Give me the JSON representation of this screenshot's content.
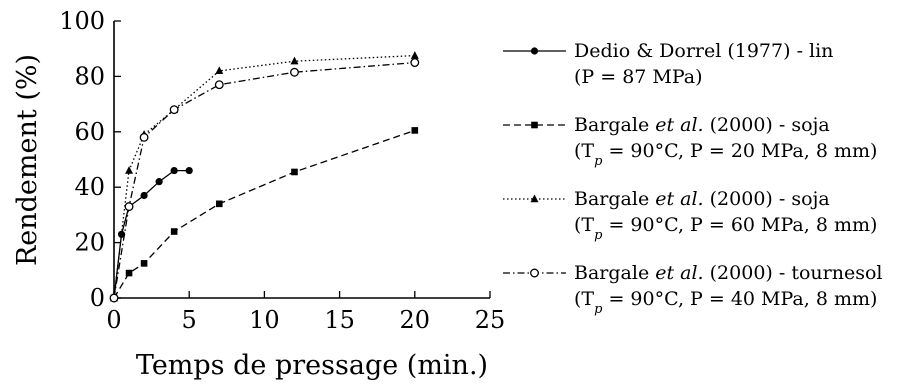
{
  "chart_data": {
    "type": "line",
    "title": "",
    "xlabel": "Temps de pressage (min.)",
    "ylabel": "Rendement (%)",
    "xlim": [
      0,
      25
    ],
    "ylim": [
      0,
      100
    ],
    "xticks": [
      0,
      5,
      10,
      15,
      20,
      25
    ],
    "yticks": [
      0,
      20,
      40,
      60,
      80,
      100
    ],
    "grid": false,
    "legend_position": "right",
    "series": [
      {
        "label_parts": [
          [
            {
              "t": "Dedio & Dorrel (1977) - lin"
            }
          ],
          [
            {
              "t": "(P = 87 MPa)"
            }
          ]
        ],
        "marker": "circle-filled",
        "line_style": "solid",
        "x": [
          0,
          0.5,
          1,
          2,
          3,
          4,
          5
        ],
        "y": [
          0,
          23,
          33,
          37,
          42,
          46,
          46
        ]
      },
      {
        "label_parts": [
          [
            {
              "t": "Bargale "
            },
            {
              "t": "et al.",
              "i": true
            },
            {
              "t": " (2000) - soja"
            }
          ],
          [
            {
              "t": "(T"
            },
            {
              "t": "p",
              "s": true
            },
            {
              "t": " = 90°C, P = 20 MPa, 8 mm)"
            }
          ]
        ],
        "marker": "square-filled",
        "line_style": "dashed",
        "x": [
          0,
          1,
          2,
          4,
          7,
          12,
          20
        ],
        "y": [
          0,
          9,
          12.5,
          24,
          34,
          45.5,
          60.5
        ]
      },
      {
        "label_parts": [
          [
            {
              "t": "Bargale "
            },
            {
              "t": "et al.",
              "i": true
            },
            {
              "t": " (2000) - soja"
            }
          ],
          [
            {
              "t": "(T"
            },
            {
              "t": "p",
              "s": true
            },
            {
              "t": " = 90°C, P = 60 MPa, 8 mm)"
            }
          ]
        ],
        "marker": "triangle-filled",
        "line_style": "dotted",
        "x": [
          0,
          1,
          2,
          4,
          7,
          12,
          20
        ],
        "y": [
          0,
          46,
          59,
          68,
          82,
          85.5,
          87.5
        ]
      },
      {
        "label_parts": [
          [
            {
              "t": "Bargale "
            },
            {
              "t": "et al.",
              "i": true
            },
            {
              "t": " (2000) - tournesol"
            }
          ],
          [
            {
              "t": "(T"
            },
            {
              "t": "p",
              "s": true
            },
            {
              "t": " = 90°C, P = 40 MPa, 8 mm)"
            }
          ]
        ],
        "marker": "circle-open",
        "line_style": "dash-dot",
        "x": [
          0,
          1,
          2,
          4,
          7,
          12,
          20
        ],
        "y": [
          0,
          33,
          58,
          68,
          77,
          81.5,
          85
        ]
      }
    ]
  }
}
